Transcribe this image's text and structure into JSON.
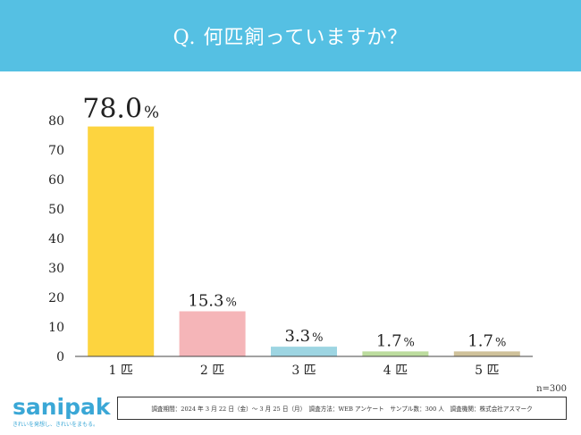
{
  "header": {
    "title": "Q. 何匹飼っていますか？"
  },
  "chart_data": {
    "type": "bar",
    "title": "Q. 何匹飼っていますか？",
    "categories": [
      "1 匹",
      "2 匹",
      "3 匹",
      "4 匹",
      "5 匹"
    ],
    "values": [
      78.0,
      15.3,
      3.3,
      1.7,
      1.7
    ],
    "value_labels": [
      "78.0",
      "15.3",
      "3.3",
      "1.7",
      "1.7"
    ],
    "value_unit": "%",
    "bar_colors": [
      "#fdd43f",
      "#f5b5b8",
      "#9dd5e2",
      "#bcdc9e",
      "#cfc19a"
    ],
    "ylim": [
      0,
      80
    ],
    "yticks": [
      0,
      10,
      20,
      30,
      40,
      50,
      60,
      70,
      80
    ],
    "xlabel": "",
    "ylabel": "",
    "grid": false,
    "legend": "none"
  },
  "sample_size": "n=300",
  "survey_note": "調査期間：2024 年 3 月 22 日（金）〜 3 月 25 日（月）　調査方法：WEB アンケート　サンプル数：300 人　調査機関：株式会社アスマーク",
  "logo": {
    "name": "sanipak",
    "tagline": "きれいを発想し、きれいをまもる。",
    "color": "#3aa7d6"
  }
}
